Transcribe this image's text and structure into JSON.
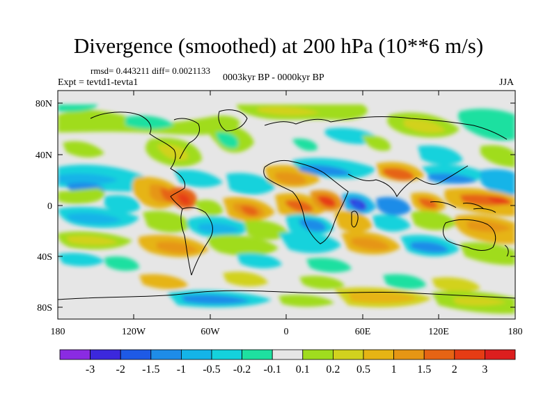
{
  "title": "Divergence (smoothed) at 200 hPa (10**6 m/s)",
  "stats": "rmsd= 0.443211 diff= 0.0021133",
  "experiment": "Expt = tevtd1-tevta1",
  "period": "0003kyr BP - 0000kyr BP",
  "season": "JJA",
  "lat_ticks": [
    "80N",
    "40N",
    "0",
    "40S",
    "80S"
  ],
  "lon_ticks": [
    "180",
    "120W",
    "60W",
    "0",
    "60E",
    "120E",
    "180"
  ],
  "colorbar": {
    "labels": [
      "-3",
      "-2",
      "-1.5",
      "-1",
      "-0.5",
      "-0.2",
      "-0.1",
      "0.1",
      "0.2",
      "0.5",
      "1",
      "1.5",
      "2",
      "3"
    ],
    "colors": [
      "#8a2be2",
      "#3c28dc",
      "#1e5ae6",
      "#1e8ce8",
      "#14b4e8",
      "#14d2dc",
      "#1ee0a0",
      "#e6e6e6",
      "#a0dc1e",
      "#d2d21e",
      "#e6b414",
      "#e69614",
      "#e66414",
      "#e63c14",
      "#dc1e1e"
    ]
  }
}
